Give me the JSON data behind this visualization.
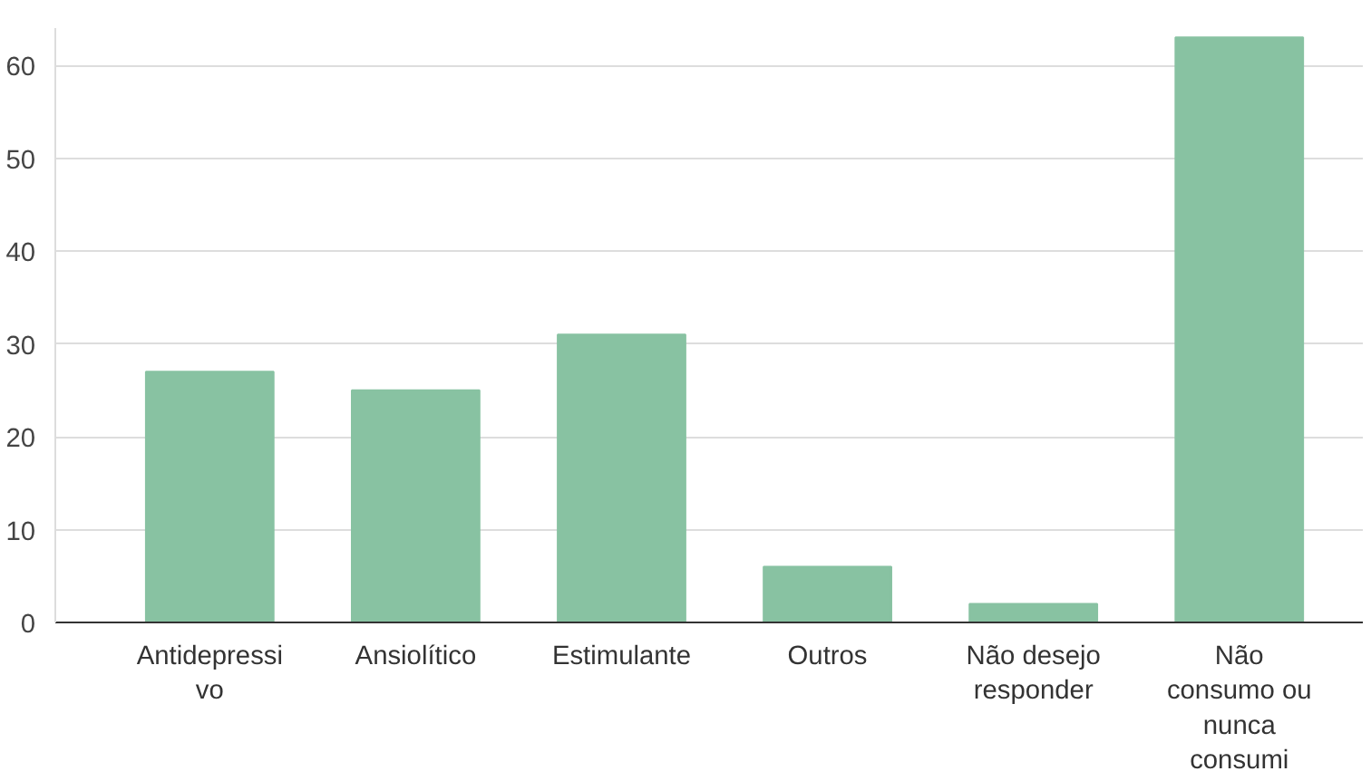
{
  "chart_data": {
    "type": "bar",
    "categories": [
      "Antidepressi\nvo",
      "Ansiolítico",
      "Estimulante",
      "Outros",
      "Não desejo\nresponder",
      "Não\nconsumo ou\nnunca\nconsumi"
    ],
    "values": [
      27,
      25,
      31,
      6,
      2,
      63
    ],
    "color": "#88c2a2",
    "ylim": [
      0,
      64
    ],
    "yticks": [
      0,
      10,
      20,
      30,
      40,
      50,
      60
    ],
    "grid": "y"
  }
}
